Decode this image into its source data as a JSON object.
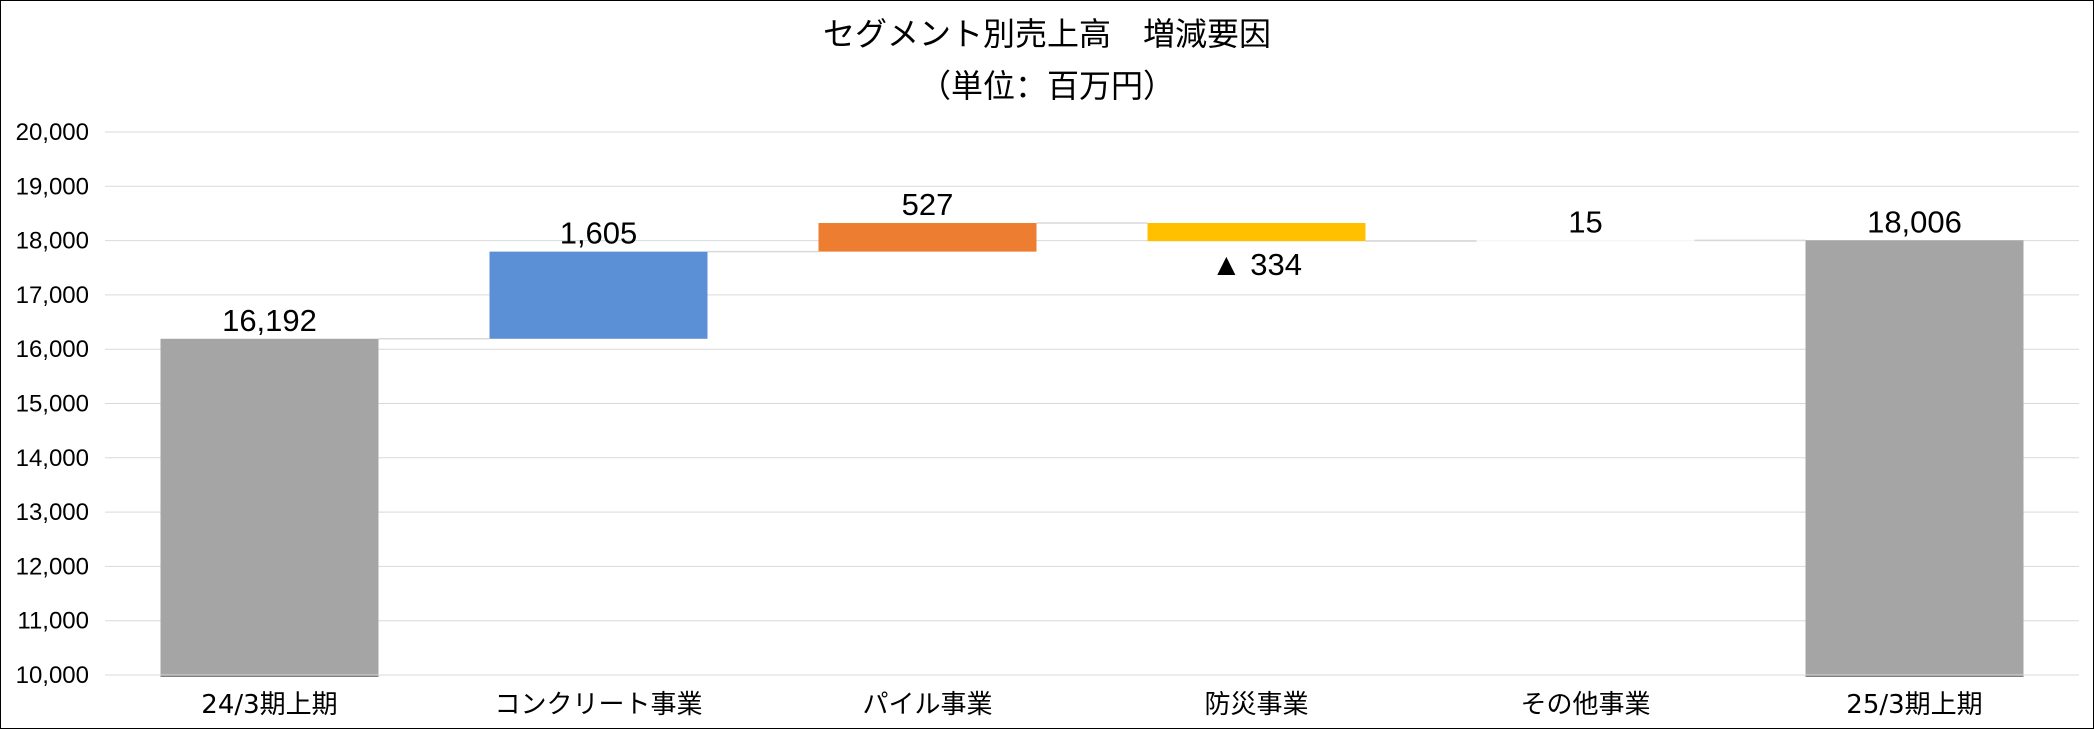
{
  "chart_data": {
    "type": "bar",
    "subtype": "waterfall",
    "title": "セグメント別売上高　増減要因",
    "subtitle": "（単位：百万円）",
    "ylim": [
      10000,
      20000
    ],
    "y_ticks": [
      "10,000",
      "11,000",
      "12,000",
      "13,000",
      "14,000",
      "15,000",
      "16,000",
      "17,000",
      "18,000",
      "19,000",
      "20,000"
    ],
    "grid": true,
    "categories": [
      "24/3期上期",
      "コンクリート事業",
      "パイル事業",
      "防災事業",
      "その他事業",
      "25/3期上期"
    ],
    "values": [
      16192,
      1605,
      527,
      -334,
      15,
      18006
    ],
    "kinds": [
      "total",
      "delta",
      "delta",
      "delta",
      "delta",
      "total"
    ],
    "value_labels": [
      "16,192",
      "1,605",
      "527",
      "▲ 334",
      "15",
      "18,006"
    ],
    "colors": {
      "total": "#a5a5a5",
      "deltas": [
        "#5b8fd6",
        "#ed7d31",
        "#ffc000",
        "#ffffff"
      ],
      "grid": "#d9d9d9",
      "connector": "#d9d9d9"
    }
  }
}
